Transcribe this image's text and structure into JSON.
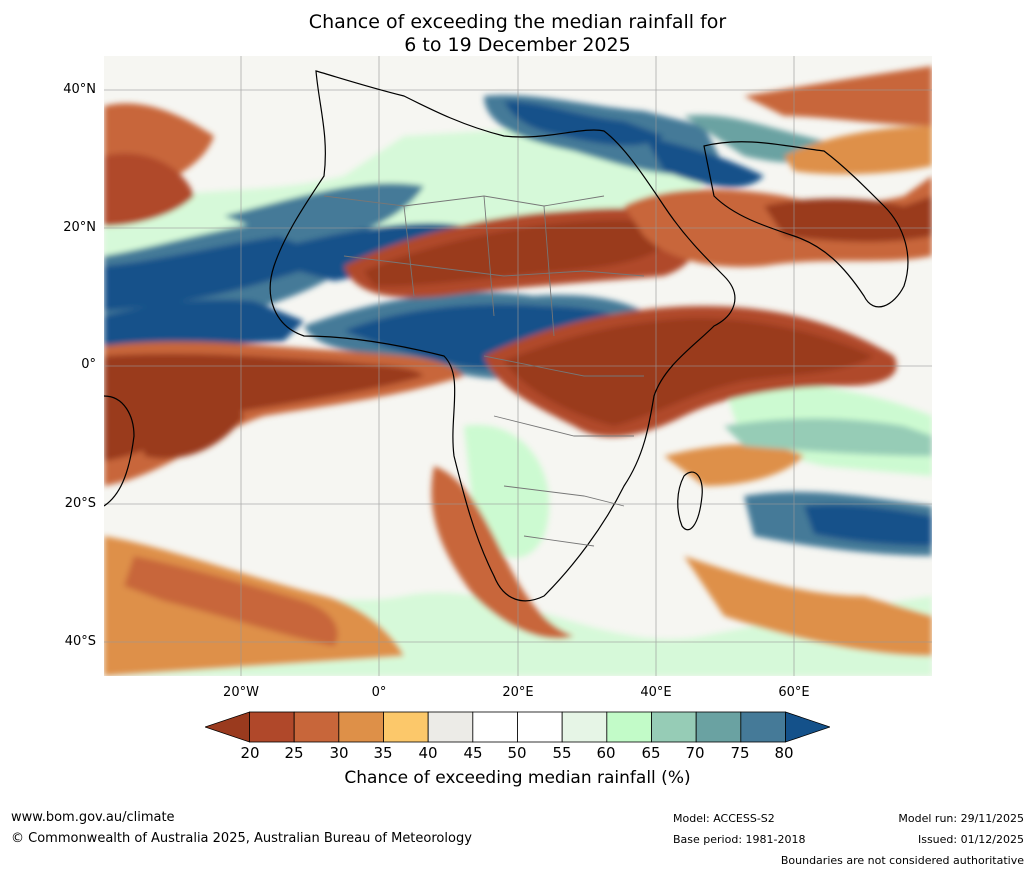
{
  "title": {
    "line1": "Chance of exceeding the median rainfall for",
    "line2": "6 to 19 December 2025"
  },
  "map": {
    "lat_labels": [
      "40°N",
      "20°N",
      "0°",
      "20°S",
      "40°S"
    ],
    "lon_labels": [
      "20°W",
      "0°",
      "20°E",
      "40°E",
      "60°E"
    ]
  },
  "colorbar": {
    "ticks": [
      "20",
      "25",
      "30",
      "35",
      "40",
      "45",
      "50",
      "55",
      "60",
      "65",
      "70",
      "75",
      "80"
    ],
    "colors": [
      "#9a3a1e",
      "#b0482a",
      "#c8663a",
      "#de9048",
      "#fcc86a",
      "#ecebe7",
      "#ffffff",
      "#ffffff",
      "#e6f5e6",
      "#c2fbc8",
      "#96ccb6",
      "#6aa2a2",
      "#457a98",
      "#14518a"
    ],
    "label": "Chance of exceeding median rainfall (%)"
  },
  "footer": {
    "website": "www.bom.gov.au/climate",
    "copyright": "© Commonwealth of Australia 2025, Australian Bureau of Meteorology",
    "model": "Model: ACCESS-S2",
    "base_period": "Base period: 1981-2018",
    "model_run": "Model run: 29/11/2025",
    "issued": "Issued: 01/12/2025",
    "disclaimer": "Boundaries are not considered authoritative"
  }
}
